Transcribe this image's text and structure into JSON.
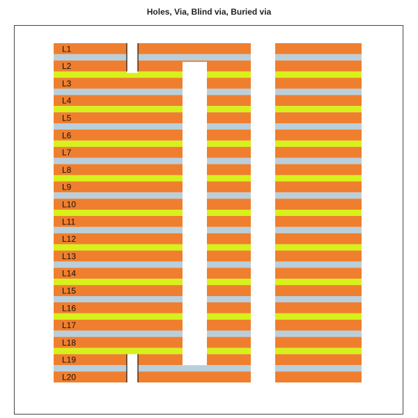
{
  "title": "Holes, Via, Blind via, Buried via",
  "colors": {
    "copper": "#ef7f2f",
    "dielectric": "#b9cfdc",
    "prepreg": "#d7f11b",
    "hole": "#ffffff",
    "hole_edge": "#111111"
  },
  "layers": [
    "L1",
    "L2",
    "L3",
    "L4",
    "L5",
    "L6",
    "L7",
    "L8",
    "L9",
    "L10",
    "L11",
    "L12",
    "L13",
    "L14",
    "L15",
    "L16",
    "L17",
    "L18",
    "L19",
    "L20"
  ],
  "holes": [
    {
      "kind": "blind via",
      "from": "L1",
      "to": "L2"
    },
    {
      "kind": "buried via",
      "from": "L2",
      "to": "L19"
    },
    {
      "kind": "blind via",
      "from": "L19",
      "to": "L20"
    },
    {
      "kind": "through hole",
      "from": "L1",
      "to": "L20"
    }
  ]
}
